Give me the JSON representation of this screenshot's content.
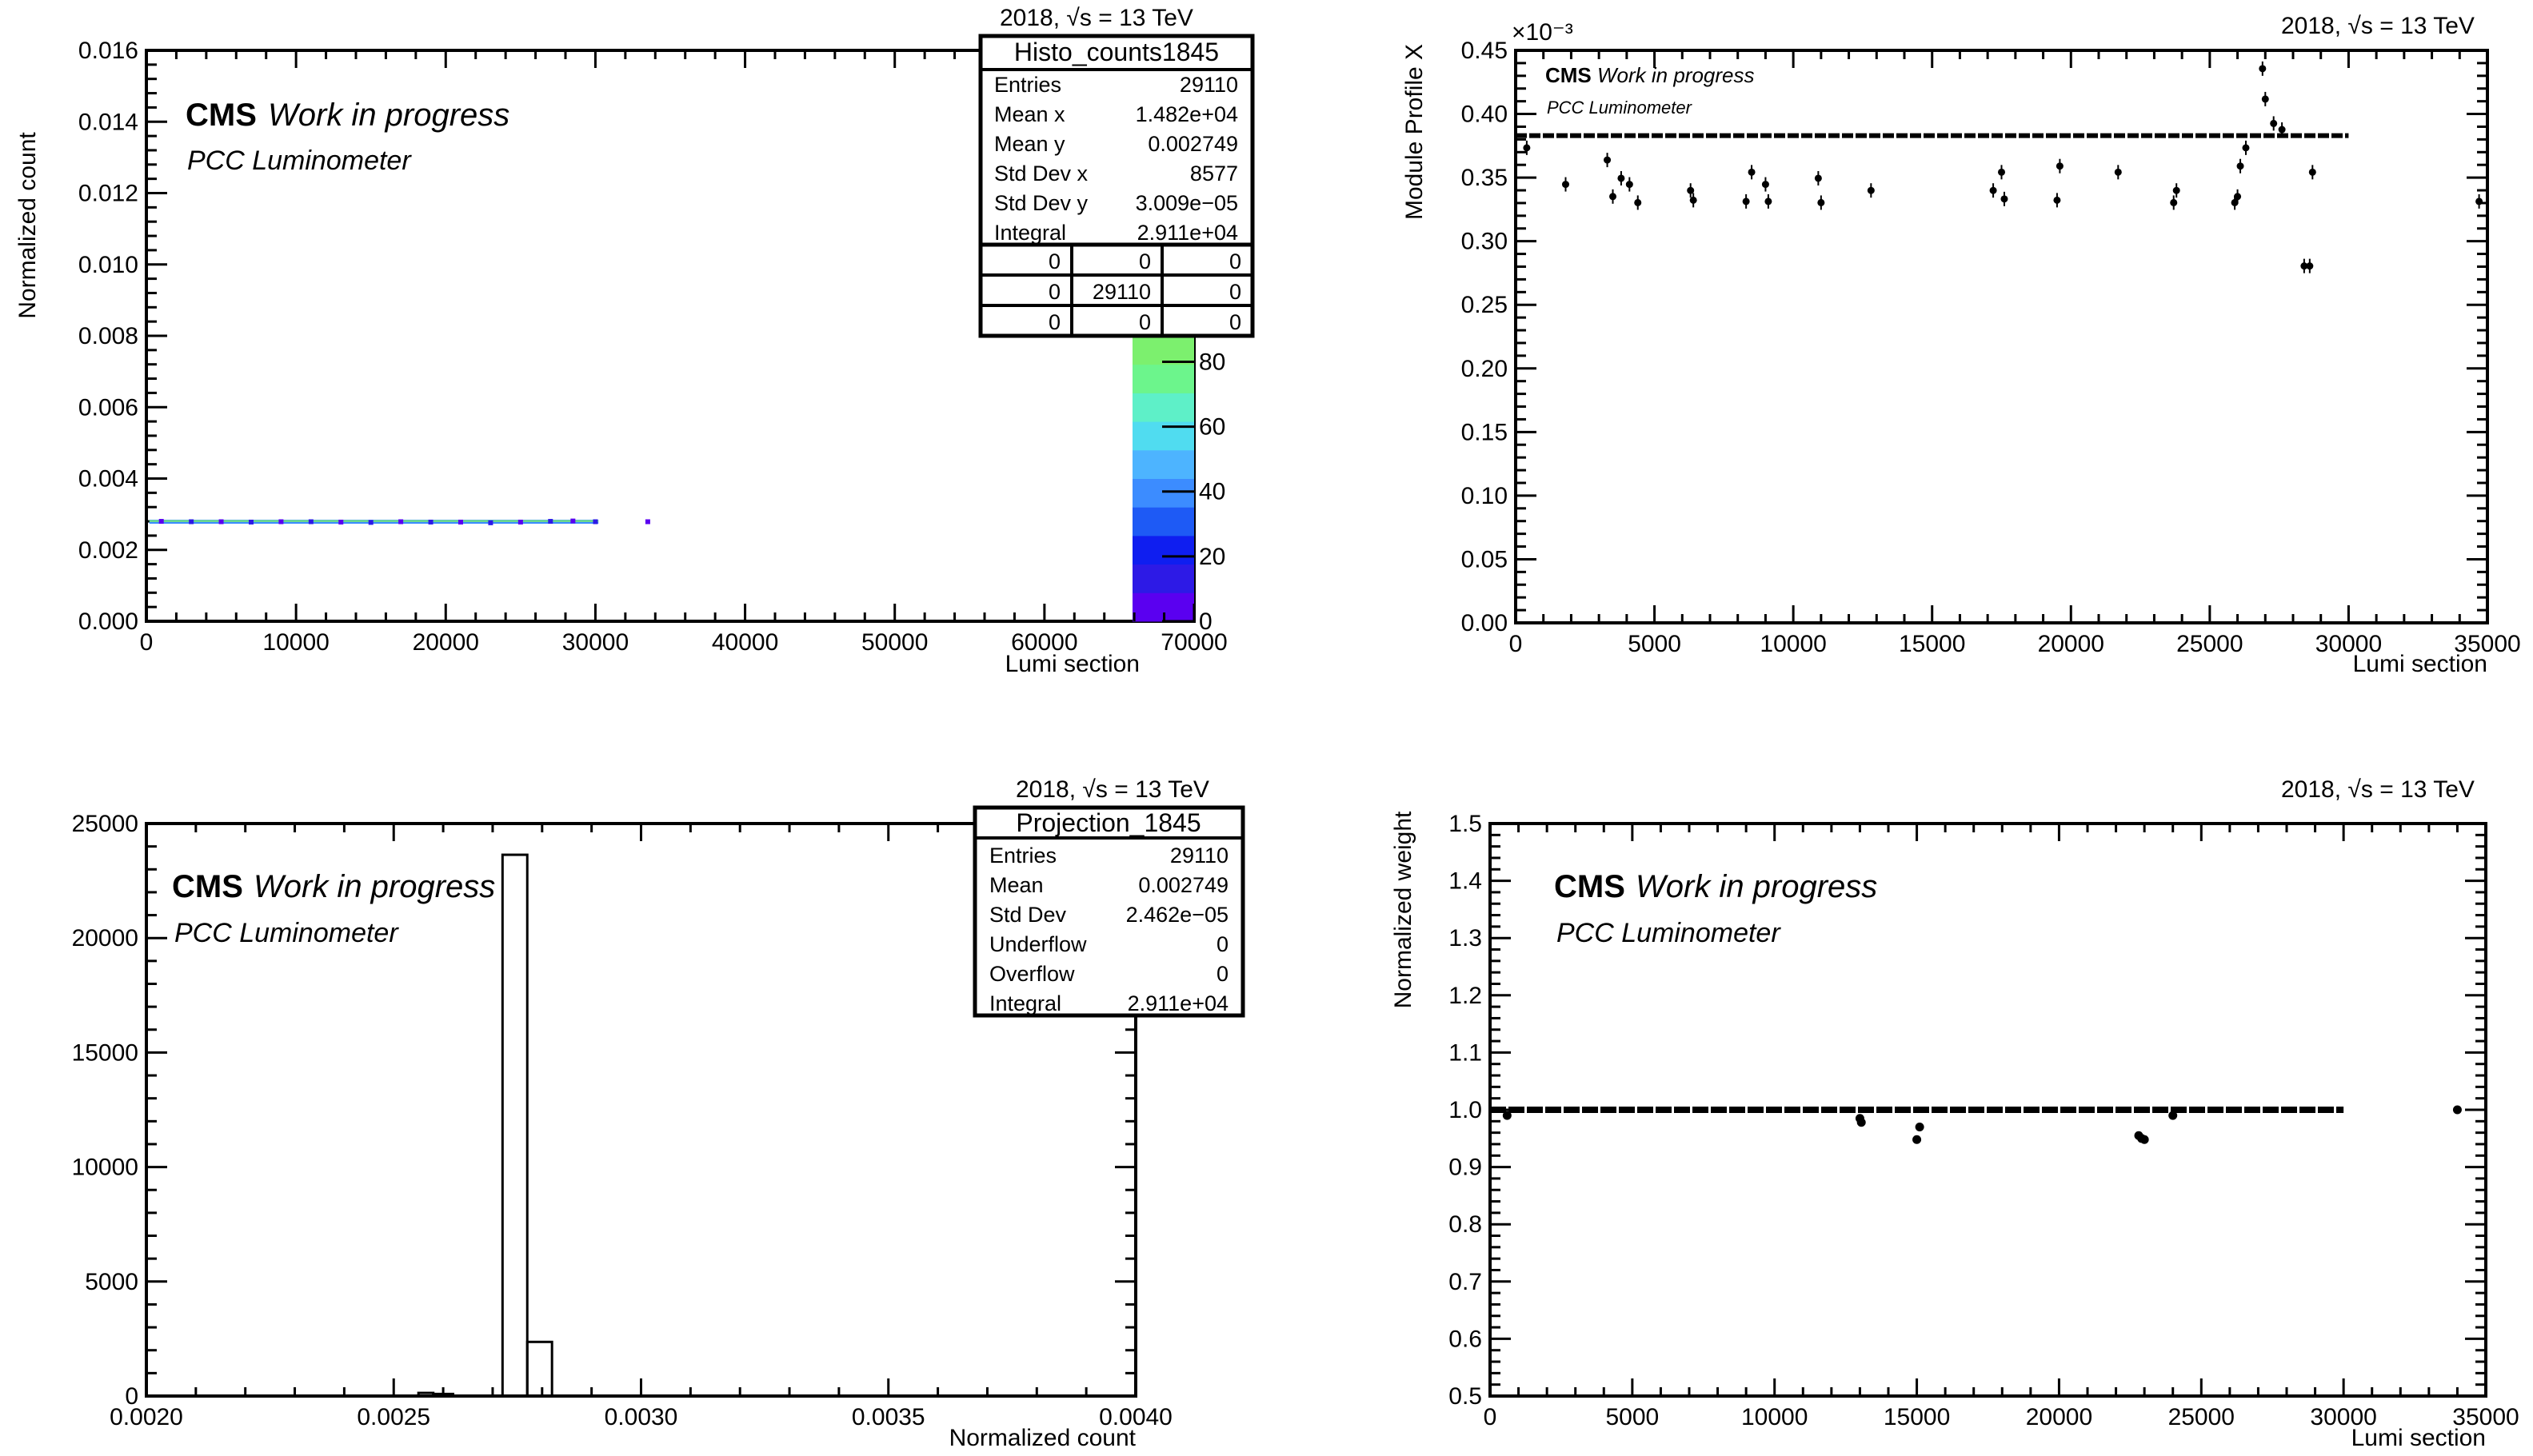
{
  "energy_label": "2018, √s = 13 TeV",
  "cms_label": "CMS",
  "wip_label": "Work in progress",
  "pcc_label": "PCC Luminometer",
  "chart_data": [
    {
      "id": "top-left",
      "type": "scatter",
      "xlabel": "Lumi section",
      "ylabel": "Normalized count",
      "xlim": [
        0,
        70000
      ],
      "ylim": [
        0,
        0.016
      ],
      "xticks": [
        "0",
        "10000",
        "20000",
        "30000",
        "40000",
        "50000",
        "60000",
        "70000"
      ],
      "yticks": [
        "0.000",
        "0.002",
        "0.004",
        "0.006",
        "0.008",
        "0.010",
        "0.012",
        "0.014",
        "0.016"
      ],
      "colz_ticks": [
        "0",
        "20",
        "40",
        "60",
        "80"
      ],
      "colz_colors": [
        "#5a00f0",
        "#2d1ae6",
        "#0f1ef0",
        "#1e5af5",
        "#3c8cff",
        "#4db4ff",
        "#50dcf0",
        "#5ef0c8",
        "#6cf58c",
        "#7cf06e"
      ],
      "x": [
        1000,
        3000,
        5000,
        7000,
        9000,
        11000,
        13000,
        15000,
        17000,
        19000,
        21000,
        23000,
        25000,
        27000,
        28500,
        30000,
        33500
      ],
      "y": [
        0.0028,
        0.00279,
        0.00279,
        0.00278,
        0.00279,
        0.00279,
        0.00278,
        0.00277,
        0.00279,
        0.00278,
        0.00278,
        0.00276,
        0.00278,
        0.0028,
        0.00281,
        0.00279,
        0.00279
      ],
      "stats": {
        "title": "Histo_counts1845",
        "rows": [
          [
            "Entries",
            "29110"
          ],
          [
            "Mean x",
            "1.482e+04"
          ],
          [
            "Mean y",
            "0.002749"
          ],
          [
            "Std Dev x",
            "8577"
          ],
          [
            "Std Dev y",
            "3.009e−05"
          ],
          [
            "Integral",
            "2.911e+04"
          ]
        ],
        "grid": [
          [
            "0",
            "0",
            "0"
          ],
          [
            "0",
            "29110",
            "0"
          ],
          [
            "0",
            "0",
            "0"
          ]
        ]
      }
    },
    {
      "id": "top-right",
      "type": "scatter",
      "xlabel": "Lumi section",
      "ylabel": "Module Profile X",
      "exponent": "×10⁻³",
      "xlim": [
        0,
        35000
      ],
      "ylim": [
        0,
        0.47
      ],
      "xticks": [
        "0",
        "5000",
        "10000",
        "15000",
        "20000",
        "25000",
        "30000",
        "35000"
      ],
      "yticks": [
        "0.00",
        "0.05",
        "0.10",
        "0.15",
        "0.20",
        "0.25",
        "0.30",
        "0.35",
        "0.40",
        "0.45"
      ],
      "baseline": 0.4,
      "baseline_range": [
        0,
        30000
      ],
      "x": [
        400,
        1800,
        3300,
        3500,
        3800,
        4100,
        4400,
        6300,
        6400,
        8300,
        8500,
        9000,
        9100,
        10900,
        11000,
        12800,
        17200,
        17500,
        17600,
        19500,
        19600,
        21700,
        23700,
        23800,
        25900,
        26000,
        26100,
        26300,
        26900,
        27000,
        27300,
        27600,
        28400,
        28600,
        28700,
        34700
      ],
      "y": [
        0.39,
        0.36,
        0.38,
        0.35,
        0.365,
        0.36,
        0.345,
        0.355,
        0.347,
        0.346,
        0.37,
        0.36,
        0.346,
        0.365,
        0.345,
        0.355,
        0.355,
        0.37,
        0.348,
        0.347,
        0.375,
        0.37,
        0.345,
        0.355,
        0.345,
        0.35,
        0.375,
        0.39,
        0.455,
        0.43,
        0.41,
        0.405,
        0.293,
        0.293,
        0.37,
        0.346
      ]
    },
    {
      "id": "bottom-left",
      "type": "bar",
      "xlabel": "Normalized count",
      "ylabel": "",
      "xlim": [
        0.002,
        0.004
      ],
      "ylim": [
        0,
        27500
      ],
      "xticks": [
        "0.0020",
        "0.0025",
        "0.0030",
        "0.0035",
        "0.0040"
      ],
      "yticks": [
        "0",
        "5000",
        "10000",
        "15000",
        "20000",
        "25000"
      ],
      "bins": [
        [
          0.00255,
          0.00258,
          150
        ],
        [
          0.00258,
          0.00262,
          100
        ],
        [
          0.00272,
          0.00277,
          26000
        ],
        [
          0.00277,
          0.00282,
          2600
        ]
      ],
      "stats": {
        "title": "Projection_1845",
        "rows": [
          [
            "Entries",
            "29110"
          ],
          [
            "Mean",
            "0.002749"
          ],
          [
            "Std Dev",
            "2.462e−05"
          ],
          [
            "Underflow",
            "0"
          ],
          [
            "Overflow",
            "0"
          ],
          [
            "Integral",
            "2.911e+04"
          ]
        ]
      }
    },
    {
      "id": "bottom-right",
      "type": "scatter",
      "xlabel": "Lumi section",
      "ylabel": "Normalized weight",
      "xlim": [
        0,
        35000
      ],
      "ylim": [
        0.5,
        1.5
      ],
      "xticks": [
        "0",
        "5000",
        "10000",
        "15000",
        "20000",
        "25000",
        "30000",
        "35000"
      ],
      "yticks": [
        "0.5",
        "0.6",
        "0.7",
        "0.8",
        "0.9",
        "1.0",
        "1.1",
        "1.2",
        "1.3",
        "1.4",
        "1.5"
      ],
      "baseline": 1.0,
      "baseline_range": [
        0,
        30000
      ],
      "x": [
        600,
        13000,
        13050,
        15000,
        15100,
        22800,
        22900,
        23000,
        24000,
        34000
      ],
      "y": [
        0.99,
        0.985,
        0.978,
        0.948,
        0.97,
        0.955,
        0.95,
        0.948,
        0.99,
        1.0
      ]
    }
  ]
}
